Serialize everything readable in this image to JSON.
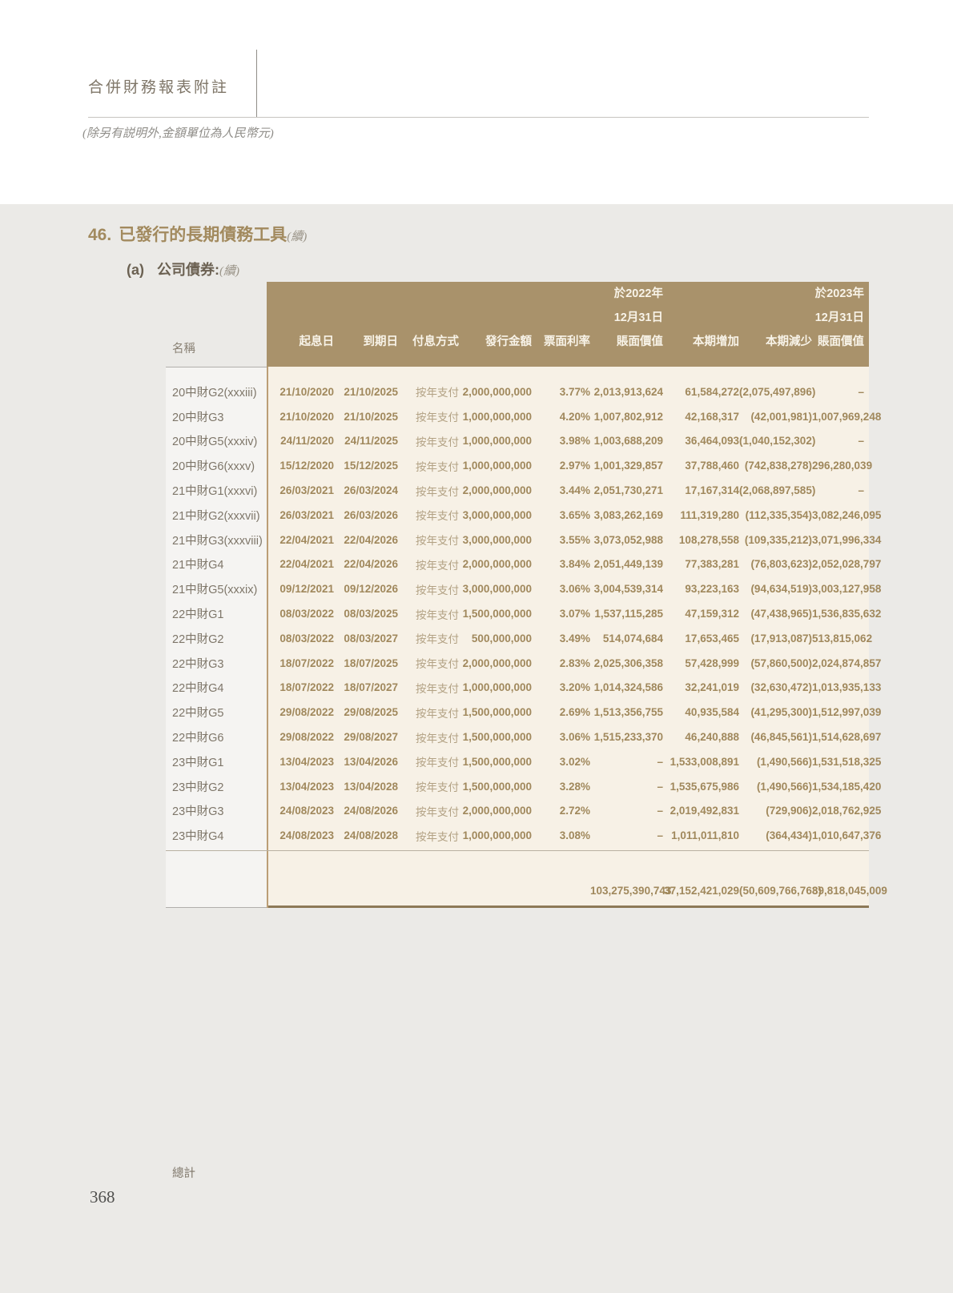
{
  "page": {
    "doc_title": "合併財務報表附註",
    "doc_subtitle": "(除另有説明外,金額單位為人民幣元)",
    "page_number": "368"
  },
  "section": {
    "number": "46.",
    "title": "已發行的長期債務工具",
    "continued": "(續)",
    "sub_label": "(a)",
    "sub_title": "公司債券:",
    "sub_continued": "(續)"
  },
  "colors": {
    "header_bg": "#a9926b",
    "body_bg": "#f7f1e6",
    "page_band_bg": "#ebeae7",
    "name_col_bg": "#f5f4f2",
    "number_text": "#a0885c",
    "section_accent": "#a28a5e",
    "bottom_border": "#8d7957"
  },
  "table": {
    "name_header": "名稱",
    "columns": [
      [
        "起息日"
      ],
      [
        "到期日"
      ],
      [
        "付息方式"
      ],
      [
        "發行金額"
      ],
      [
        "票面利率"
      ],
      [
        "於2022年",
        "12月31日",
        "賬面價值"
      ],
      [
        "本期增加"
      ],
      [
        "本期減少"
      ],
      [
        "於2023年",
        "12月31日",
        "賬面價值"
      ]
    ],
    "rows": [
      {
        "name": "20中財G2(xxxiii)",
        "values": [
          "21/10/2020",
          "21/10/2025",
          "按年支付",
          "2,000,000,000",
          "3.77%",
          "2,013,913,624",
          "61,584,272",
          "(2,075,497,896)",
          "–"
        ]
      },
      {
        "name": "20中財G3",
        "values": [
          "21/10/2020",
          "21/10/2025",
          "按年支付",
          "1,000,000,000",
          "4.20%",
          "1,007,802,912",
          "42,168,317",
          "(42,001,981)",
          "1,007,969,248"
        ]
      },
      {
        "name": "20中財G5(xxxiv)",
        "values": [
          "24/11/2020",
          "24/11/2025",
          "按年支付",
          "1,000,000,000",
          "3.98%",
          "1,003,688,209",
          "36,464,093",
          "(1,040,152,302)",
          "–"
        ]
      },
      {
        "name": "20中財G6(xxxv)",
        "values": [
          "15/12/2020",
          "15/12/2025",
          "按年支付",
          "1,000,000,000",
          "2.97%",
          "1,001,329,857",
          "37,788,460",
          "(742,838,278)",
          "296,280,039"
        ]
      },
      {
        "name": "21中財G1(xxxvi)",
        "values": [
          "26/03/2021",
          "26/03/2024",
          "按年支付",
          "2,000,000,000",
          "3.44%",
          "2,051,730,271",
          "17,167,314",
          "(2,068,897,585)",
          "–"
        ]
      },
      {
        "name": "21中財G2(xxxvii)",
        "values": [
          "26/03/2021",
          "26/03/2026",
          "按年支付",
          "3,000,000,000",
          "3.65%",
          "3,083,262,169",
          "111,319,280",
          "(112,335,354)",
          "3,082,246,095"
        ]
      },
      {
        "name": "21中財G3(xxxviii)",
        "values": [
          "22/04/2021",
          "22/04/2026",
          "按年支付",
          "3,000,000,000",
          "3.55%",
          "3,073,052,988",
          "108,278,558",
          "(109,335,212)",
          "3,071,996,334"
        ]
      },
      {
        "name": "21中財G4",
        "values": [
          "22/04/2021",
          "22/04/2026",
          "按年支付",
          "2,000,000,000",
          "3.84%",
          "2,051,449,139",
          "77,383,281",
          "(76,803,623)",
          "2,052,028,797"
        ]
      },
      {
        "name": "21中財G5(xxxix)",
        "values": [
          "09/12/2021",
          "09/12/2026",
          "按年支付",
          "3,000,000,000",
          "3.06%",
          "3,004,539,314",
          "93,223,163",
          "(94,634,519)",
          "3,003,127,958"
        ]
      },
      {
        "name": "22中財G1",
        "values": [
          "08/03/2022",
          "08/03/2025",
          "按年支付",
          "1,500,000,000",
          "3.07%",
          "1,537,115,285",
          "47,159,312",
          "(47,438,965)",
          "1,536,835,632"
        ]
      },
      {
        "name": "22中財G2",
        "values": [
          "08/03/2022",
          "08/03/2027",
          "按年支付",
          "500,000,000",
          "3.49%",
          "514,074,684",
          "17,653,465",
          "(17,913,087)",
          "513,815,062"
        ]
      },
      {
        "name": "22中財G3",
        "values": [
          "18/07/2022",
          "18/07/2025",
          "按年支付",
          "2,000,000,000",
          "2.83%",
          "2,025,306,358",
          "57,428,999",
          "(57,860,500)",
          "2,024,874,857"
        ]
      },
      {
        "name": "22中財G4",
        "values": [
          "18/07/2022",
          "18/07/2027",
          "按年支付",
          "1,000,000,000",
          "3.20%",
          "1,014,324,586",
          "32,241,019",
          "(32,630,472)",
          "1,013,935,133"
        ]
      },
      {
        "name": "22中財G5",
        "values": [
          "29/08/2022",
          "29/08/2025",
          "按年支付",
          "1,500,000,000",
          "2.69%",
          "1,513,356,755",
          "40,935,584",
          "(41,295,300)",
          "1,512,997,039"
        ]
      },
      {
        "name": "22中財G6",
        "values": [
          "29/08/2022",
          "29/08/2027",
          "按年支付",
          "1,500,000,000",
          "3.06%",
          "1,515,233,370",
          "46,240,888",
          "(46,845,561)",
          "1,514,628,697"
        ]
      },
      {
        "name": "23中財G1",
        "values": [
          "13/04/2023",
          "13/04/2026",
          "按年支付",
          "1,500,000,000",
          "3.02%",
          "–",
          "1,533,008,891",
          "(1,490,566)",
          "1,531,518,325"
        ]
      },
      {
        "name": "23中財G2",
        "values": [
          "13/04/2023",
          "13/04/2028",
          "按年支付",
          "1,500,000,000",
          "3.28%",
          "–",
          "1,535,675,986",
          "(1,490,566)",
          "1,534,185,420"
        ]
      },
      {
        "name": "23中財G3",
        "values": [
          "24/08/2023",
          "24/08/2026",
          "按年支付",
          "2,000,000,000",
          "2.72%",
          "–",
          "2,019,492,831",
          "(729,906)",
          "2,018,762,925"
        ]
      },
      {
        "name": "23中財G4",
        "values": [
          "24/08/2023",
          "24/08/2028",
          "按年支付",
          "1,000,000,000",
          "3.08%",
          "–",
          "1,011,011,810",
          "(364,434)",
          "1,010,647,376"
        ]
      }
    ],
    "total": {
      "label": "總計",
      "values": [
        "",
        "",
        "",
        "",
        "",
        "103,275,390,743",
        "37,152,421,029",
        "(50,609,766,763)",
        "89,818,045,009"
      ]
    }
  }
}
